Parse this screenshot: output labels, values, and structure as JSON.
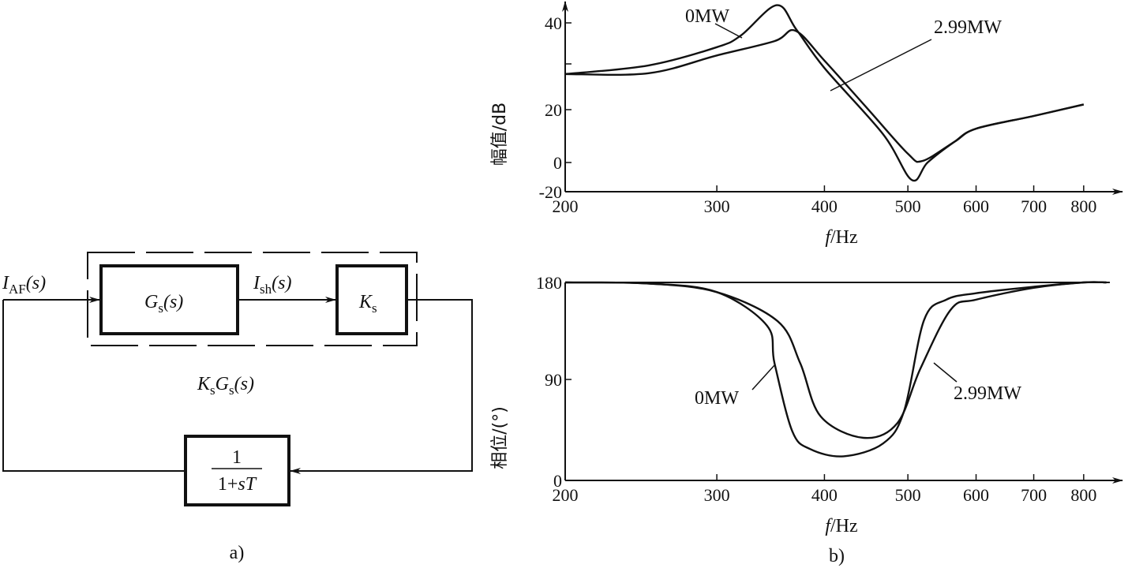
{
  "diagram": {
    "input_label": {
      "main": "I",
      "sub": "AF",
      "tail": "(s)"
    },
    "block_gs": {
      "main": "G",
      "sub": "s",
      "tail": "(s)"
    },
    "mid_label": {
      "main": "I",
      "sub": "sh",
      "tail": "(s)"
    },
    "block_ks": {
      "main": "K",
      "sub": "s"
    },
    "group_label": {
      "k": "K",
      "ksub": "s",
      "g": "G",
      "gsub": "s",
      "tail": "(s)"
    },
    "feedback": {
      "num": "1",
      "den_a": "1+",
      "den_s": "s",
      "den_t": "T"
    },
    "caption": "a)"
  },
  "caption_b": "b)",
  "chart_data": [
    {
      "type": "line",
      "xscale": "log",
      "xlabel": {
        "var": "f",
        "unit": "/Hz"
      },
      "ylabel": "幅值/dB",
      "xlim": [
        200,
        850
      ],
      "ylim": [
        -20,
        45
      ],
      "xticks": [
        200,
        300,
        400,
        500,
        600,
        700,
        800
      ],
      "yticks": [
        -20,
        0,
        20,
        40
      ],
      "grid": false,
      "series": [
        {
          "name": "0MW",
          "x": [
            200,
            250,
            300,
            320,
            352,
            371,
            400,
            468,
            505,
            527,
            566,
            600,
            700,
            800
          ],
          "y": [
            28.2,
            30.2,
            34.4,
            37.1,
            44,
            38.5,
            29.6,
            10.7,
            -11.9,
            0,
            7.8,
            12.8,
            17.6,
            21.2
          ]
        },
        {
          "name": "2.99MW",
          "x": [
            200,
            250,
            300,
            350,
            370,
            400,
            449,
            500,
            520,
            566,
            600,
            700,
            800
          ],
          "y": [
            28.2,
            28.4,
            32.5,
            35.8,
            38.2,
            31.3,
            20.2,
            3.3,
            0.6,
            7.8,
            12.8,
            17.6,
            21.2
          ]
        }
      ]
    },
    {
      "type": "line",
      "xscale": "log",
      "xlabel": {
        "var": "f",
        "unit": "/Hz"
      },
      "ylabel": "相位/(°)",
      "xlim": [
        200,
        850
      ],
      "ylim": [
        0,
        180
      ],
      "xticks": [
        200,
        300,
        400,
        500,
        600,
        700,
        800
      ],
      "yticks": [
        0,
        90,
        180
      ],
      "grid": false,
      "series": [
        {
          "name": "0MW",
          "x": [
            200,
            250,
            300,
            343,
            350,
            367,
            385,
            421,
            468,
            495,
            522,
            554,
            600,
            700,
            800,
            850
          ],
          "y": [
            180,
            179,
            171,
            140,
            105,
            44,
            28,
            21.5,
            33,
            62,
            145,
            164,
            170,
            176,
            180,
            180
          ]
        },
        {
          "name": "2.99MW",
          "x": [
            200,
            250,
            300,
            353,
            375,
            396,
            444,
            486,
            517,
            561,
            600,
            700,
            800,
            850
          ],
          "y": [
            180,
            179,
            171,
            144,
            105,
            57,
            38,
            51,
            100,
            155,
            164,
            175,
            180,
            180
          ]
        }
      ]
    }
  ]
}
